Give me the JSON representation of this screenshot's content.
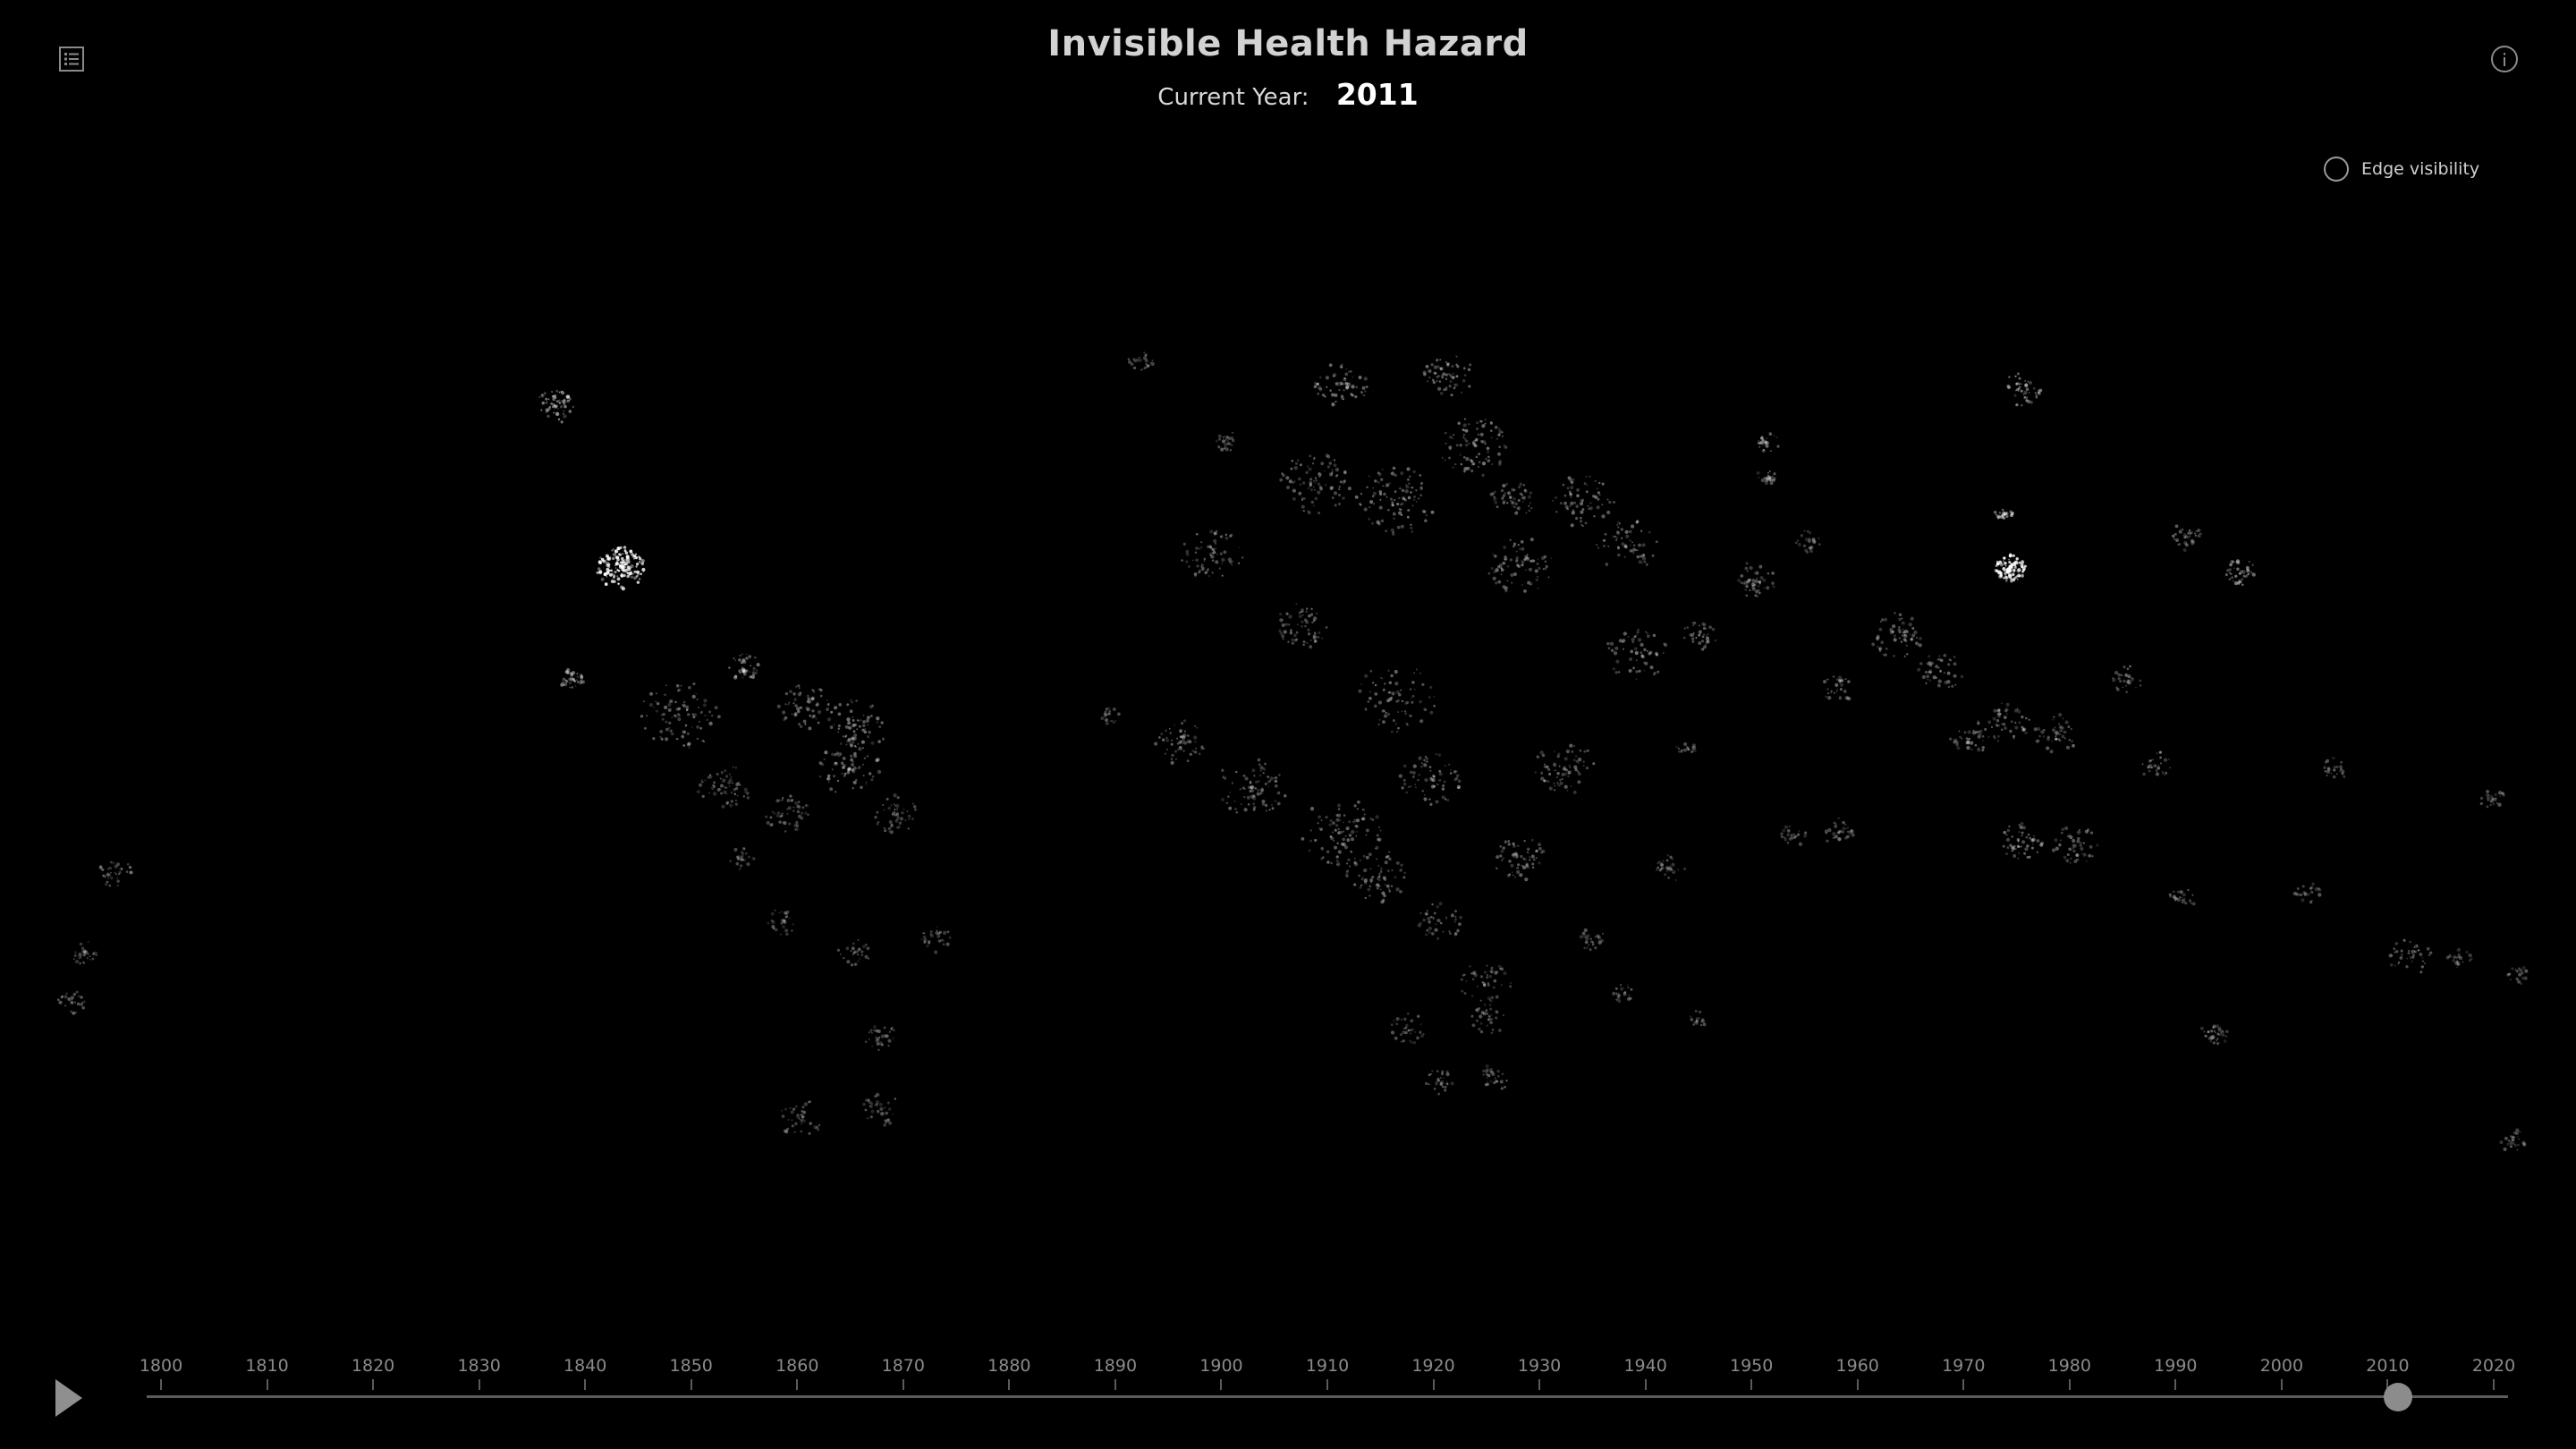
{
  "title": "Invisible Health Hazard",
  "current_year_label": "Current Year:",
  "current_year": "2011",
  "edge_toggle": {
    "label": "Edge visibility",
    "checked": false
  },
  "icons": {
    "legend": "list-icon",
    "info": "info-icon",
    "play": "play-icon"
  },
  "timeline": {
    "min": 1800,
    "max": 2021,
    "value": 2011,
    "ticks": [
      "1800",
      "1810",
      "1820",
      "1830",
      "1840",
      "1850",
      "1860",
      "1870",
      "1880",
      "1890",
      "1900",
      "1910",
      "1920",
      "1930",
      "1940",
      "1950",
      "1960",
      "1970",
      "1980",
      "1990",
      "2000",
      "2010",
      "2020"
    ]
  },
  "colors": {
    "background": "#000000",
    "point": "#ffffff",
    "text": "#d2d2d2"
  }
}
